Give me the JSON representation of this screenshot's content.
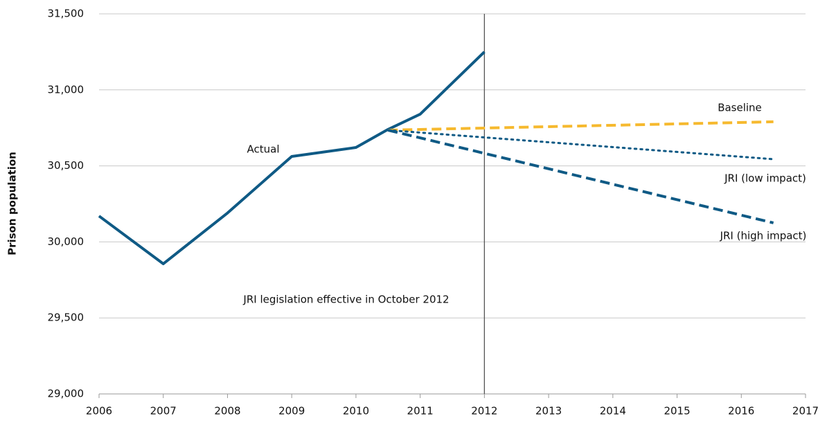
{
  "chart_data": {
    "type": "line",
    "y_label": "Prison population",
    "annotation": "JRI legislation effective in October 2012",
    "event_line_x": 2012,
    "xlim": [
      2006,
      2017
    ],
    "xticks": [
      2006,
      2007,
      2008,
      2009,
      2010,
      2011,
      2012,
      2013,
      2014,
      2015,
      2016,
      2017
    ],
    "ylim": [
      29000,
      31500
    ],
    "yticks": [
      {
        "value": 29000,
        "label": "29,000"
      },
      {
        "value": 29500,
        "label": "29,500"
      },
      {
        "value": 30000,
        "label": "30,000"
      },
      {
        "value": 30500,
        "label": "30,500"
      },
      {
        "value": 31000,
        "label": "31,000"
      },
      {
        "value": 31500,
        "label": "31,500"
      }
    ],
    "grid": true,
    "series": [
      {
        "name": "Actual",
        "color": "#0f5a85",
        "dash": "solid",
        "x": [
          2006,
          2007,
          2008,
          2009,
          2010,
          2010.5,
          2011,
          2012
        ],
        "values": [
          30170,
          29856,
          30190,
          30562,
          30621,
          30740,
          30840,
          31250
        ]
      },
      {
        "name": "Baseline",
        "color": "#f6b92e",
        "dash": "dashed",
        "x": [
          2010.5,
          2016.5
        ],
        "values": [
          30735,
          30790
        ]
      },
      {
        "name": "JRI (low impact)",
        "color": "#0f5a85",
        "dash": "dotted",
        "x": [
          2010.5,
          2016.5
        ],
        "values": [
          30735,
          30544
        ]
      },
      {
        "name": "JRI (high impact)",
        "color": "#0f5a85",
        "dash": "dashed",
        "x": [
          2010.5,
          2016.5
        ],
        "values": [
          30735,
          30125
        ]
      }
    ]
  }
}
